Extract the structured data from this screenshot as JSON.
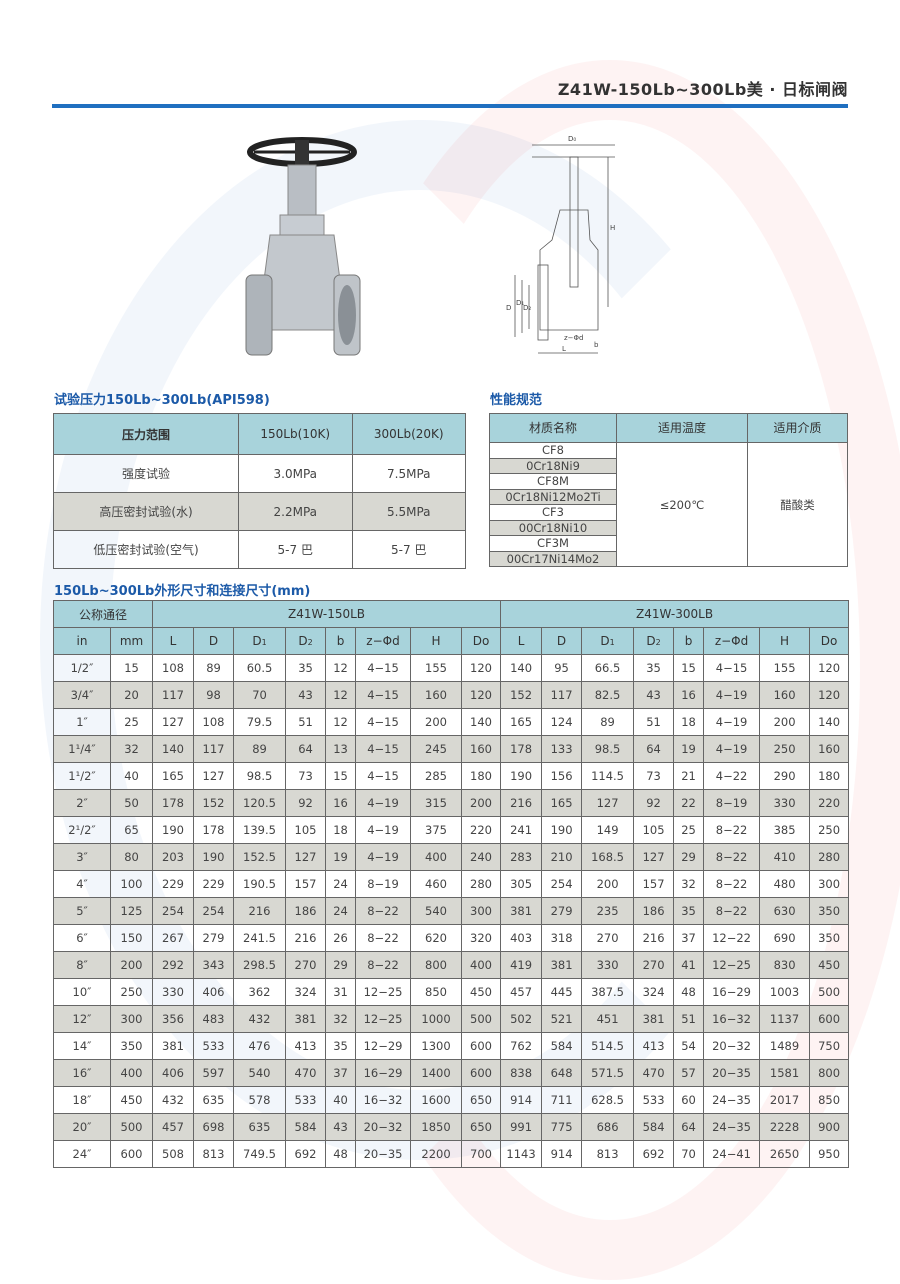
{
  "header": {
    "title": "Z41W-150Lb~300Lb美 · 日标闸阀"
  },
  "diagram": {
    "labels": {
      "d0": "D₀",
      "h": "H",
      "d": "D",
      "d1": "D₁",
      "d2": "D₂",
      "zphid": "z−Φd",
      "l": "L",
      "b": "b"
    }
  },
  "pressure": {
    "title": "试验压力150Lb~300Lb(API598)",
    "headers": [
      "压力范围",
      "150Lb(10K)",
      "300Lb(20K)"
    ],
    "rows": [
      [
        "强度试验",
        "3.0MPa",
        "7.5MPa"
      ],
      [
        "高压密封试验(水)",
        "2.2MPa",
        "5.5MPa"
      ],
      [
        "低压密封试验(空气)",
        "5-7 巴",
        "5-7 巴"
      ]
    ]
  },
  "performance": {
    "title": "性能规范",
    "headers": [
      "材质名称",
      "适用温度",
      "适用介质"
    ],
    "materials": [
      "CF8",
      "0Cr18Ni9",
      "CF8M",
      "0Cr18Ni12Mo2Ti",
      "CF3",
      "00Cr18Ni10",
      "CF3M",
      "00Cr17Ni14Mo2"
    ],
    "temperature": "≤200℃",
    "medium": "醋酸类"
  },
  "dimensions": {
    "title": "150Lb~300Lb外形尺寸和连接尺寸(mm)",
    "group_header": "公称通径",
    "model_150": "Z41W-150LB",
    "model_300": "Z41W-300LB",
    "columns": [
      "in",
      "mm",
      "L",
      "D",
      "D1",
      "D2",
      "b",
      "z−Φd",
      "H",
      "Do",
      "L",
      "D",
      "D1",
      "D2",
      "b",
      "z−Φd",
      "H",
      "Do"
    ],
    "rows": [
      [
        "1/2″",
        "15",
        "108",
        "89",
        "60.5",
        "35",
        "12",
        "4−15",
        "155",
        "120",
        "140",
        "95",
        "66.5",
        "35",
        "15",
        "4−15",
        "155",
        "120"
      ],
      [
        "3/4″",
        "20",
        "117",
        "98",
        "70",
        "43",
        "12",
        "4−15",
        "160",
        "120",
        "152",
        "117",
        "82.5",
        "43",
        "16",
        "4−19",
        "160",
        "120"
      ],
      [
        "1″",
        "25",
        "127",
        "108",
        "79.5",
        "51",
        "12",
        "4−15",
        "200",
        "140",
        "165",
        "124",
        "89",
        "51",
        "18",
        "4−19",
        "200",
        "140"
      ],
      [
        "1¹/4″",
        "32",
        "140",
        "117",
        "89",
        "64",
        "13",
        "4−15",
        "245",
        "160",
        "178",
        "133",
        "98.5",
        "64",
        "19",
        "4−19",
        "250",
        "160"
      ],
      [
        "1¹/2″",
        "40",
        "165",
        "127",
        "98.5",
        "73",
        "15",
        "4−15",
        "285",
        "180",
        "190",
        "156",
        "114.5",
        "73",
        "21",
        "4−22",
        "290",
        "180"
      ],
      [
        "2″",
        "50",
        "178",
        "152",
        "120.5",
        "92",
        "16",
        "4−19",
        "315",
        "200",
        "216",
        "165",
        "127",
        "92",
        "22",
        "8−19",
        "330",
        "220"
      ],
      [
        "2¹/2″",
        "65",
        "190",
        "178",
        "139.5",
        "105",
        "18",
        "4−19",
        "375",
        "220",
        "241",
        "190",
        "149",
        "105",
        "25",
        "8−22",
        "385",
        "250"
      ],
      [
        "3″",
        "80",
        "203",
        "190",
        "152.5",
        "127",
        "19",
        "4−19",
        "400",
        "240",
        "283",
        "210",
        "168.5",
        "127",
        "29",
        "8−22",
        "410",
        "280"
      ],
      [
        "4″",
        "100",
        "229",
        "229",
        "190.5",
        "157",
        "24",
        "8−19",
        "460",
        "280",
        "305",
        "254",
        "200",
        "157",
        "32",
        "8−22",
        "480",
        "300"
      ],
      [
        "5″",
        "125",
        "254",
        "254",
        "216",
        "186",
        "24",
        "8−22",
        "540",
        "300",
        "381",
        "279",
        "235",
        "186",
        "35",
        "8−22",
        "630",
        "350"
      ],
      [
        "6″",
        "150",
        "267",
        "279",
        "241.5",
        "216",
        "26",
        "8−22",
        "620",
        "320",
        "403",
        "318",
        "270",
        "216",
        "37",
        "12−22",
        "690",
        "350"
      ],
      [
        "8″",
        "200",
        "292",
        "343",
        "298.5",
        "270",
        "29",
        "8−22",
        "800",
        "400",
        "419",
        "381",
        "330",
        "270",
        "41",
        "12−25",
        "830",
        "450"
      ],
      [
        "10″",
        "250",
        "330",
        "406",
        "362",
        "324",
        "31",
        "12−25",
        "850",
        "450",
        "457",
        "445",
        "387.5",
        "324",
        "48",
        "16−29",
        "1003",
        "500"
      ],
      [
        "12″",
        "300",
        "356",
        "483",
        "432",
        "381",
        "32",
        "12−25",
        "1000",
        "500",
        "502",
        "521",
        "451",
        "381",
        "51",
        "16−32",
        "1137",
        "600"
      ],
      [
        "14″",
        "350",
        "381",
        "533",
        "476",
        "413",
        "35",
        "12−29",
        "1300",
        "600",
        "762",
        "584",
        "514.5",
        "413",
        "54",
        "20−32",
        "1489",
        "750"
      ],
      [
        "16″",
        "400",
        "406",
        "597",
        "540",
        "470",
        "37",
        "16−29",
        "1400",
        "600",
        "838",
        "648",
        "571.5",
        "470",
        "57",
        "20−35",
        "1581",
        "800"
      ],
      [
        "18″",
        "450",
        "432",
        "635",
        "578",
        "533",
        "40",
        "16−32",
        "1600",
        "650",
        "914",
        "711",
        "628.5",
        "533",
        "60",
        "24−35",
        "2017",
        "850"
      ],
      [
        "20″",
        "500",
        "457",
        "698",
        "635",
        "584",
        "43",
        "20−32",
        "1850",
        "650",
        "991",
        "775",
        "686",
        "584",
        "64",
        "24−35",
        "2228",
        "900"
      ],
      [
        "24″",
        "600",
        "508",
        "813",
        "749.5",
        "692",
        "48",
        "20−35",
        "2200",
        "700",
        "1143",
        "914",
        "813",
        "692",
        "70",
        "24−41",
        "2650",
        "950"
      ]
    ]
  },
  "colors": {
    "accent": "#1f6fc0",
    "header_bg": "#a8d3db",
    "stripe_bg": "#d8d8d2"
  }
}
